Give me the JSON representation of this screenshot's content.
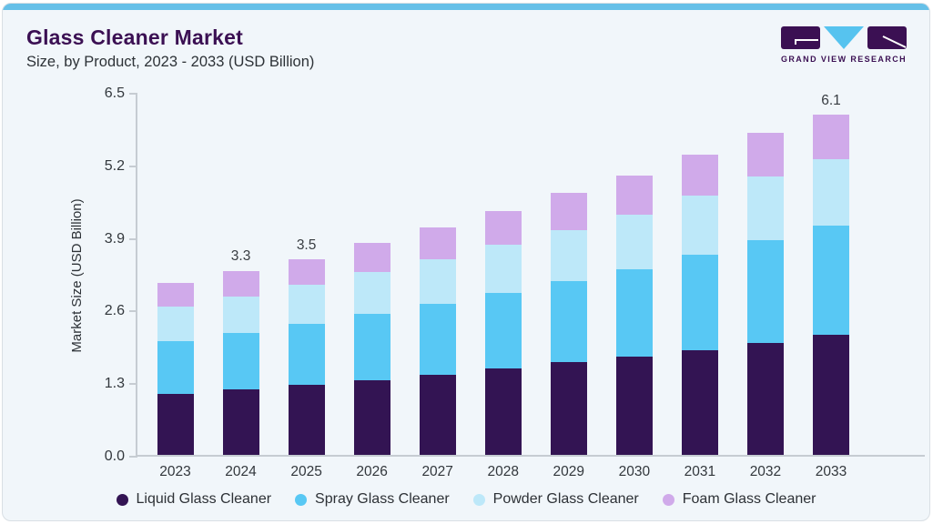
{
  "page": {
    "background": "#ffffff"
  },
  "card": {
    "background": "#f1f6fa",
    "top_bar_color": "#66c0e8",
    "border_color": "#d9dfe4"
  },
  "header": {
    "title": "Glass Cleaner Market",
    "subtitle": "Size, by Product, 2023 - 2033 (USD Billion)",
    "title_color": "#3b1053",
    "logo": {
      "text": "GRAND VIEW RESEARCH",
      "block_color": "#3b1053",
      "triangle_color": "#56c3ef"
    }
  },
  "chart_data": {
    "type": "bar",
    "stacked": true,
    "title": "Glass Cleaner Market Size, by Product, 2023 - 2033 (USD Billion)",
    "categories": [
      "2023",
      "2024",
      "2025",
      "2026",
      "2027",
      "2028",
      "2029",
      "2030",
      "2031",
      "2032",
      "2033"
    ],
    "series": [
      {
        "name": "Liquid Glass Cleaner",
        "color": "#331453",
        "values": [
          1.09,
          1.17,
          1.25,
          1.34,
          1.44,
          1.55,
          1.66,
          1.76,
          1.88,
          2.01,
          2.15
        ]
      },
      {
        "name": "Spray Glass Cleaner",
        "color": "#58c8f4",
        "values": [
          0.95,
          1.02,
          1.1,
          1.18,
          1.27,
          1.35,
          1.45,
          1.57,
          1.7,
          1.83,
          1.95
        ]
      },
      {
        "name": "Powder Glass Cleaner",
        "color": "#bde8f9",
        "values": [
          0.61,
          0.65,
          0.7,
          0.76,
          0.8,
          0.87,
          0.91,
          0.97,
          1.07,
          1.15,
          1.2
        ]
      },
      {
        "name": "Foam Glass Cleaner",
        "color": "#d0aaea",
        "values": [
          0.43,
          0.46,
          0.45,
          0.52,
          0.56,
          0.6,
          0.67,
          0.71,
          0.72,
          0.77,
          0.8
        ]
      }
    ],
    "totals": [
      3.08,
      3.3,
      3.5,
      3.8,
      4.07,
      4.37,
      4.69,
      5.01,
      5.37,
      5.76,
      6.1
    ],
    "bar_total_labels": {
      "2024": "3.3",
      "2025": "3.5",
      "2033": "6.1"
    },
    "xlabel": "",
    "ylabel": "Market Size (USD Billion)",
    "ylim": [
      0,
      6.5
    ],
    "y_ticks": [
      0.0,
      1.3,
      2.6,
      3.9,
      5.2,
      6.5
    ],
    "y_tick_labels": [
      "0.0",
      "1.3",
      "2.6",
      "3.9",
      "5.2",
      "6.5"
    ],
    "grid": false,
    "legend_position": "bottom"
  },
  "axis": {
    "line_color": "#c6ccd2",
    "text_color": "#32373c"
  }
}
